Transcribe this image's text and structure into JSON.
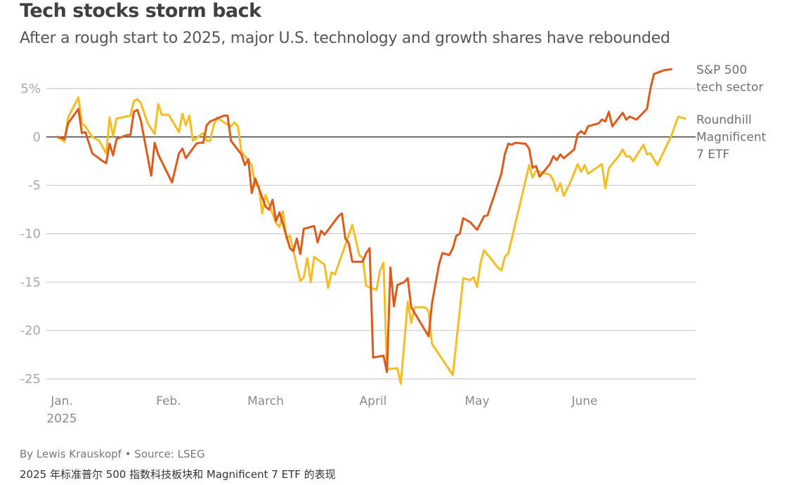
{
  "header": {
    "title": "Tech stocks storm back",
    "subtitle": "After a rough start to 2025, major U.S. technology and growth shares have rebounded"
  },
  "footer": {
    "byline": "By Lewis Krauskopf • Source: LSEG",
    "caption": "2025 年标准普尔 500 指数科技板块和 Magnificent 7 ETF 的表现"
  },
  "chart_data": {
    "type": "line",
    "title": "Tech stocks storm back",
    "subtitle": "After a rough start to 2025, major U.S. technology and growth shares have rebounded",
    "xlabel": "",
    "ylabel": "",
    "x_unit": "days since Jan. 1, 2025",
    "xlim": [
      0,
      181
    ],
    "ylim": [
      -25,
      5
    ],
    "grid": true,
    "legend_placement": "right, at line ends",
    "y_ticks": [
      {
        "value": 5,
        "label": "5%"
      },
      {
        "value": 0,
        "label": "0"
      },
      {
        "value": -5,
        "label": "-5"
      },
      {
        "value": -10,
        "label": "-10"
      },
      {
        "value": -15,
        "label": "-15"
      },
      {
        "value": -20,
        "label": "-20"
      },
      {
        "value": -25,
        "label": "-25"
      }
    ],
    "x_ticks": [
      {
        "value": 0,
        "label": "Jan.",
        "sublabel": "2025"
      },
      {
        "value": 32,
        "label": "Feb.",
        "sublabel": ""
      },
      {
        "value": 60,
        "label": "March",
        "sublabel": ""
      },
      {
        "value": 91,
        "label": "April",
        "sublabel": ""
      },
      {
        "value": 121,
        "label": "May",
        "sublabel": ""
      },
      {
        "value": 152,
        "label": "June",
        "sublabel": ""
      }
    ],
    "series": [
      {
        "name": "Roundhill Magnificent 7 ETF",
        "legend_lines": [
          "Roundhill",
          "Magnificent",
          "7 ETF"
        ],
        "color": "#f5bd24",
        "points": [
          [
            0,
            0
          ],
          [
            2,
            -0.5
          ],
          [
            3,
            2
          ],
          [
            6,
            4.1
          ],
          [
            7,
            1.4
          ],
          [
            8,
            1.1
          ],
          [
            10,
            0
          ],
          [
            12,
            -0.4
          ],
          [
            14,
            -1.7
          ],
          [
            15,
            2
          ],
          [
            16,
            0.1
          ],
          [
            17,
            1.9
          ],
          [
            21,
            2.2
          ],
          [
            22,
            3.7
          ],
          [
            23,
            3.9
          ],
          [
            24,
            3.5
          ],
          [
            26,
            1.4
          ],
          [
            28,
            0.3
          ],
          [
            29,
            3.4
          ],
          [
            30,
            2.3
          ],
          [
            32,
            2.3
          ],
          [
            35,
            0.5
          ],
          [
            36,
            2.4
          ],
          [
            37,
            1.2
          ],
          [
            38,
            2.2
          ],
          [
            39,
            -0.4
          ],
          [
            42,
            0.4
          ],
          [
            43,
            -0.4
          ],
          [
            44,
            -0.4
          ],
          [
            45,
            1.2
          ],
          [
            46,
            2
          ],
          [
            48,
            1.5
          ],
          [
            50,
            1.1
          ],
          [
            51,
            1.5
          ],
          [
            52,
            1.1
          ],
          [
            53,
            -1.5
          ],
          [
            56,
            -2.9
          ],
          [
            57,
            -5
          ],
          [
            58,
            -5
          ],
          [
            59,
            -7.9
          ],
          [
            60,
            -6
          ],
          [
            63,
            -8.9
          ],
          [
            64,
            -9.3
          ],
          [
            65,
            -7.7
          ],
          [
            66,
            -10.5
          ],
          [
            67,
            -10.2
          ],
          [
            70,
            -14.9
          ],
          [
            71,
            -14.5
          ],
          [
            72,
            -12.5
          ],
          [
            73,
            -15
          ],
          [
            74,
            -12.4
          ],
          [
            77,
            -13.2
          ],
          [
            78,
            -15.6
          ],
          [
            79,
            -14
          ],
          [
            80,
            -14.2
          ],
          [
            85,
            -9.1
          ],
          [
            87,
            -12.2
          ],
          [
            88,
            -12.5
          ],
          [
            89,
            -15.4
          ],
          [
            92,
            -15.8
          ],
          [
            93,
            -13.8
          ],
          [
            94,
            -13
          ],
          [
            95,
            -24
          ],
          [
            98,
            -23.9
          ],
          [
            99,
            -25.5
          ],
          [
            101,
            -17
          ],
          [
            102,
            -19.2
          ],
          [
            103,
            -17.6
          ],
          [
            106,
            -17.6
          ],
          [
            107,
            -18
          ],
          [
            108,
            -21.4
          ],
          [
            114,
            -24.6
          ],
          [
            117,
            -14.6
          ],
          [
            119,
            -14.8
          ],
          [
            120,
            -14.5
          ],
          [
            121,
            -15.5
          ],
          [
            122,
            -13
          ],
          [
            123,
            -11.7
          ],
          [
            127,
            -13.5
          ],
          [
            128,
            -13.8
          ],
          [
            129,
            -12.4
          ],
          [
            130,
            -12
          ],
          [
            134,
            -6
          ],
          [
            136,
            -2.9
          ],
          [
            137,
            -4.2
          ],
          [
            138,
            -3.5
          ],
          [
            142,
            -3.9
          ],
          [
            143,
            -4.5
          ],
          [
            144,
            -5.6
          ],
          [
            145,
            -4.8
          ],
          [
            146,
            -6.1
          ],
          [
            148,
            -4.6
          ],
          [
            150,
            -2.8
          ],
          [
            151,
            -3.6
          ],
          [
            152,
            -2.9
          ],
          [
            153,
            -3.8
          ],
          [
            157,
            -2.8
          ],
          [
            158,
            -5.3
          ],
          [
            159,
            -3.2
          ],
          [
            162,
            -1.9
          ],
          [
            163,
            -1.3
          ],
          [
            164,
            -2
          ],
          [
            165,
            -2
          ],
          [
            166,
            -2.5
          ],
          [
            169,
            -0.8
          ],
          [
            170,
            -1.8
          ],
          [
            171,
            -1.7
          ],
          [
            173,
            -2.9
          ],
          [
            177,
            0.1
          ],
          [
            179,
            2.1
          ],
          [
            181,
            1.9
          ]
        ]
      },
      {
        "name": "S&P 500 tech sector",
        "legend_lines": [
          "S&P 500",
          "tech sector"
        ],
        "color": "#de5a1b",
        "points": [
          [
            0,
            0
          ],
          [
            2,
            -0.2
          ],
          [
            3,
            1.4
          ],
          [
            6,
            2.9
          ],
          [
            7,
            0.4
          ],
          [
            8,
            0.5
          ],
          [
            10,
            -1.7
          ],
          [
            13,
            -2.5
          ],
          [
            14,
            -2.7
          ],
          [
            15,
            -0.7
          ],
          [
            16,
            -1.9
          ],
          [
            17,
            -0.2
          ],
          [
            20,
            0.2
          ],
          [
            21,
            0.2
          ],
          [
            22,
            2.6
          ],
          [
            23,
            2.8
          ],
          [
            24,
            1.7
          ],
          [
            27,
            -4
          ],
          [
            28,
            -0.6
          ],
          [
            29,
            -1.8
          ],
          [
            33,
            -4.7
          ],
          [
            35,
            -1.7
          ],
          [
            36,
            -1.2
          ],
          [
            37,
            -2.2
          ],
          [
            40,
            -0.7
          ],
          [
            41,
            -0.6
          ],
          [
            42,
            -0.6
          ],
          [
            43,
            1.2
          ],
          [
            44,
            1.6
          ],
          [
            48,
            2.2
          ],
          [
            49,
            2.2
          ],
          [
            50,
            -0.4
          ],
          [
            53,
            -1.8
          ],
          [
            54,
            -2.9
          ],
          [
            55,
            -2.3
          ],
          [
            56,
            -5.8
          ],
          [
            57,
            -4.3
          ],
          [
            60,
            -7.2
          ],
          [
            61,
            -7.5
          ],
          [
            62,
            -6.5
          ],
          [
            63,
            -8.7
          ],
          [
            64,
            -7.8
          ],
          [
            67,
            -11.5
          ],
          [
            68,
            -11.8
          ],
          [
            69,
            -10.5
          ],
          [
            70,
            -12.1
          ],
          [
            71,
            -9.5
          ],
          [
            74,
            -9.2
          ],
          [
            75,
            -10.9
          ],
          [
            76,
            -9.7
          ],
          [
            77,
            -10.1
          ],
          [
            81,
            -8.2
          ],
          [
            82,
            -7.9
          ],
          [
            83,
            -10.5
          ],
          [
            84,
            -11
          ],
          [
            85,
            -12.9
          ],
          [
            88,
            -12.9
          ],
          [
            89,
            -12
          ],
          [
            90,
            -11.5
          ],
          [
            91,
            -22.8
          ],
          [
            94,
            -22.6
          ],
          [
            95,
            -24.3
          ],
          [
            96,
            -13.5
          ],
          [
            97,
            -17.5
          ],
          [
            98,
            -15.3
          ],
          [
            100,
            -15
          ],
          [
            101,
            -14.6
          ],
          [
            102,
            -17.6
          ],
          [
            107,
            -20.6
          ],
          [
            108,
            -17.2
          ],
          [
            110,
            -13.2
          ],
          [
            111,
            -12
          ],
          [
            113,
            -12.2
          ],
          [
            114,
            -11.5
          ],
          [
            115,
            -10.2
          ],
          [
            116,
            -10
          ],
          [
            117,
            -8.4
          ],
          [
            119,
            -8.8
          ],
          [
            120,
            -9.2
          ],
          [
            121,
            -9.6
          ],
          [
            123,
            -8.2
          ],
          [
            124,
            -8.1
          ],
          [
            126,
            -6
          ],
          [
            128,
            -3.8
          ],
          [
            129,
            -1.8
          ],
          [
            130,
            -0.7
          ],
          [
            131,
            -0.8
          ],
          [
            132,
            -0.6
          ],
          [
            135,
            -0.7
          ],
          [
            136,
            -1.2
          ],
          [
            137,
            -3.2
          ],
          [
            138,
            -3
          ],
          [
            139,
            -4.1
          ],
          [
            142,
            -2.8
          ],
          [
            143,
            -2
          ],
          [
            144,
            -2.4
          ],
          [
            145,
            -1.8
          ],
          [
            146,
            -2.2
          ],
          [
            149,
            -1.3
          ],
          [
            150,
            0.3
          ],
          [
            151,
            0.6
          ],
          [
            152,
            0.3
          ],
          [
            153,
            1.1
          ],
          [
            156,
            1.4
          ],
          [
            157,
            1.8
          ],
          [
            158,
            1.6
          ],
          [
            159,
            2.6
          ],
          [
            160,
            1.1
          ],
          [
            163,
            2.5
          ],
          [
            164,
            1.8
          ],
          [
            165,
            2.1
          ],
          [
            167,
            1.8
          ],
          [
            170,
            2.9
          ],
          [
            171,
            5
          ],
          [
            172,
            6.5
          ],
          [
            175,
            6.9
          ],
          [
            177,
            7.0
          ]
        ]
      }
    ]
  }
}
